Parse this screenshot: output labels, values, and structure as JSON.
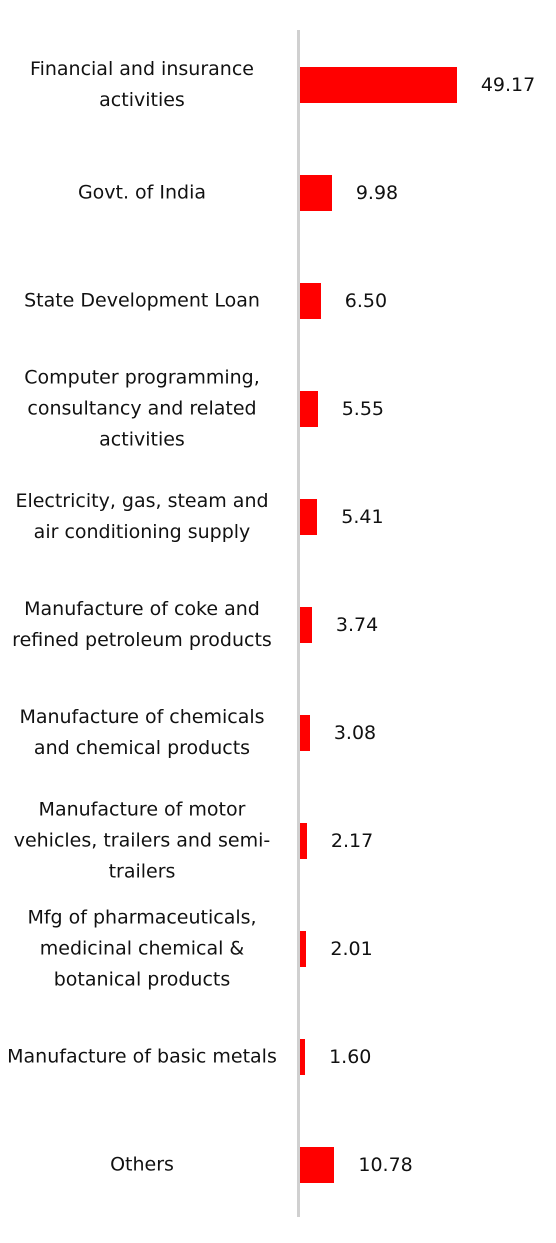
{
  "chart_data": {
    "type": "bar",
    "orientation": "horizontal",
    "color": "#ff0000",
    "categories": [
      "Financial and insurance activities",
      "Govt. of India",
      "State Development Loan",
      "Computer programming, consultancy and related activities",
      "Electricity, gas, steam and air conditioning supply",
      "Manufacture of coke and refined petroleum products",
      "Manufacture of chemicals and chemical products",
      "Manufacture of motor vehicles, trailers and semi-trailers",
      "Mfg of pharmaceuticals, medicinal chemical & botanical products",
      "Manufacture of basic metals",
      "Others"
    ],
    "values": [
      49.17,
      9.98,
      6.5,
      5.55,
      5.41,
      3.74,
      3.08,
      2.17,
      2.01,
      1.6,
      10.78
    ],
    "value_labels": [
      "49.17",
      "9.98",
      "6.50",
      "5.55",
      "5.41",
      "3.74",
      "3.08",
      "2.17",
      "2.01",
      "1.60",
      "10.78"
    ]
  }
}
